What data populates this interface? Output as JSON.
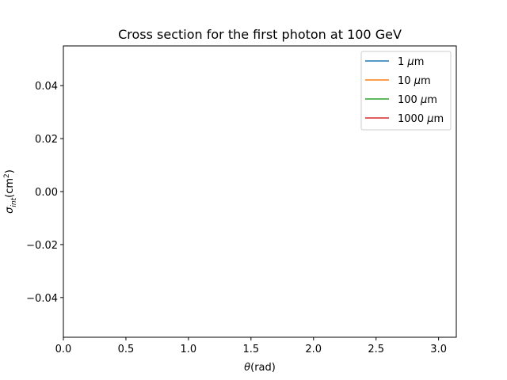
{
  "chart_data": {
    "type": "line",
    "title": "Cross section for the first photon at 100 GeV",
    "xlabel": "θ(rad)",
    "ylabel": "σ_int(cm²)",
    "xlim": [
      0,
      3.14159
    ],
    "ylim": [
      -0.055,
      0.055
    ],
    "xticks": [
      0.0,
      0.5,
      1.0,
      1.5,
      2.0,
      2.5,
      3.0
    ],
    "xtick_labels": [
      "0.0",
      "0.5",
      "1.0",
      "1.5",
      "2.0",
      "2.5",
      "3.0"
    ],
    "yticks": [
      0.04,
      0.02,
      0.0,
      -0.02,
      -0.04
    ],
    "ytick_labels": [
      "0.04",
      "0.02",
      "0.00",
      "−0.02",
      "−0.04"
    ],
    "grid": false,
    "legend_position": "top-right",
    "series": [
      {
        "name": "1 μm",
        "color": "#1f77b4",
        "values": []
      },
      {
        "name": "10 μm",
        "color": "#ff7f0e",
        "values": []
      },
      {
        "name": "100 μm",
        "color": "#2ca02c",
        "values": []
      },
      {
        "name": "1000 μm",
        "color": "#d62728",
        "values": []
      }
    ]
  }
}
